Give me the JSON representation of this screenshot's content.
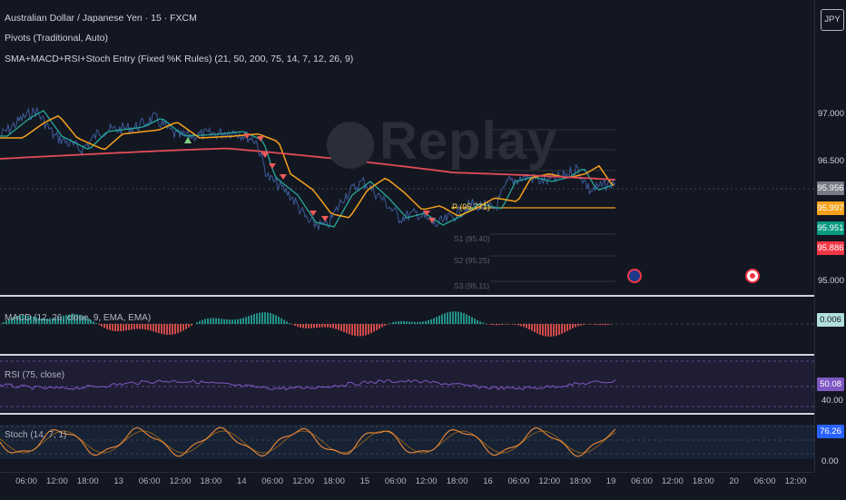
{
  "header": {
    "symbol_line": "Australian Dollar / Japanese Yen · 15 · FXCM",
    "indicator1": "Pivots (Traditional, Auto)",
    "indicator2": "SMA+MACD+RSI+Stoch Entry (Fixed %K Rules) (21, 50, 200, 75, 14, 7, 12, 26, 9)"
  },
  "currency_button": "JPY",
  "watermark": "Replay",
  "price_axis": {
    "labels": [
      "97.000",
      "96.500",
      "95.000"
    ],
    "tags": [
      {
        "value": "95.956",
        "color": "#787b86"
      },
      {
        "value": "95.997",
        "color": "#f7a21b"
      },
      {
        "value": "95.951",
        "color": "#089981"
      },
      {
        "value": "95.886",
        "color": "#f23645"
      }
    ]
  },
  "pivots": {
    "p_label": "P (95.771)",
    "faint": [
      "S1 (95.40)",
      "S2 (95.25)",
      "S3 (95.11)"
    ]
  },
  "macd": {
    "title": "MACD (12, 26, close, 9, EMA, EMA)",
    "value": "0.006",
    "color": "#b2dfdb"
  },
  "rsi": {
    "title": "RSI (75, close)",
    "value": "50.08",
    "color": "#7e57c2",
    "level": "40.00"
  },
  "stoch": {
    "title": "Stoch (14, 7, 1)",
    "value": "76.26",
    "color": "#2962ff",
    "level": "0.00"
  },
  "time_axis": [
    "06:00",
    "12:00",
    "18:00",
    "13",
    "06:00",
    "12:00",
    "18:00",
    "14",
    "06:00",
    "12:00",
    "18:00",
    "15",
    "06:00",
    "12:00",
    "18:00",
    "16",
    "06:00",
    "12:00",
    "18:00",
    "19",
    "06:00",
    "12:00",
    "18:00",
    "20",
    "06:00",
    "12:00"
  ],
  "colors": {
    "price": "#3d5a99",
    "sma21": "#26a69a",
    "sma50": "#f7a21b",
    "sma200": "#e04c58"
  }
}
